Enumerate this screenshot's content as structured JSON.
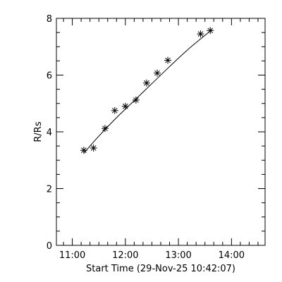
{
  "chart_data": {
    "type": "scatter",
    "title": "",
    "xlabel": "Start Time (29-Nov-25 10:42:07)",
    "ylabel": "R/Rs",
    "xlim": [
      "10:42",
      "14:38"
    ],
    "ylim": [
      0,
      8
    ],
    "x_ticks": [
      "11:00",
      "12:00",
      "13:00",
      "14:00"
    ],
    "y_ticks": [
      0,
      2,
      4,
      6,
      8
    ],
    "grid": false,
    "legend": "none",
    "marker": "asterisk",
    "series": [
      {
        "x": [
          "11:13",
          "11:24",
          "11:37",
          "11:48",
          "12:00",
          "12:12",
          "12:24",
          "12:36",
          "12:48",
          "13:25",
          "13:36"
        ],
        "y": [
          3.35,
          3.43,
          4.12,
          4.75,
          4.9,
          5.12,
          5.72,
          6.07,
          6.52,
          7.45,
          7.57
        ]
      }
    ],
    "fit_curve": {
      "x": [
        "11:13",
        "11:30",
        "11:50",
        "12:10",
        "12:30",
        "12:50",
        "13:10",
        "13:30",
        "13:38"
      ],
      "y": [
        3.25,
        3.85,
        4.5,
        5.1,
        5.7,
        6.3,
        6.88,
        7.4,
        7.6
      ]
    }
  }
}
